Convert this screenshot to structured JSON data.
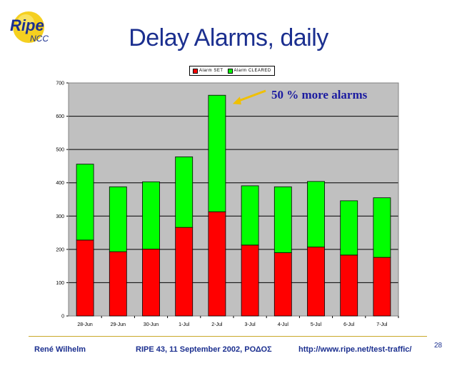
{
  "logo": {
    "word": "Ripe",
    "sub": "NCC"
  },
  "slide": {
    "title": "Delay Alarms, daily",
    "page_number": "28"
  },
  "footer": {
    "author": "René Wilhelm",
    "event": "RIPE 43, 11 September 2002, ΡΟΔΟΣ",
    "url": "http://www.ripe.net/test-traffic/"
  },
  "colors": {
    "set": "#ff0000",
    "cleared": "#00ff00",
    "plot_bg": "#c0c0c0",
    "annotation": "#1b1ba0",
    "arrow": "#f0c000"
  },
  "chart_data": {
    "type": "bar",
    "stacked": true,
    "categories": [
      "28-Jun",
      "29-Jun",
      "30-Jun",
      "1-Jul",
      "2-Jul",
      "3-Jul",
      "4-Jul",
      "5-Jul",
      "6-Jul",
      "7-Jul"
    ],
    "series": [
      {
        "name": "Alarm SET",
        "values": [
          228,
          193,
          201,
          266,
          313,
          213,
          190,
          207,
          183,
          176
        ]
      },
      {
        "name": "Alarm CLEARED",
        "values": [
          228,
          195,
          202,
          212,
          350,
          178,
          198,
          197,
          163,
          179
        ]
      }
    ],
    "ylim": [
      0,
      700
    ],
    "yticks": [
      "0",
      "100",
      "200",
      "300",
      "400",
      "500",
      "600",
      "700"
    ],
    "grid": true,
    "legend_position": "top",
    "annotation": {
      "text": "50 % more alarms",
      "target_category": "2-Jul"
    }
  }
}
